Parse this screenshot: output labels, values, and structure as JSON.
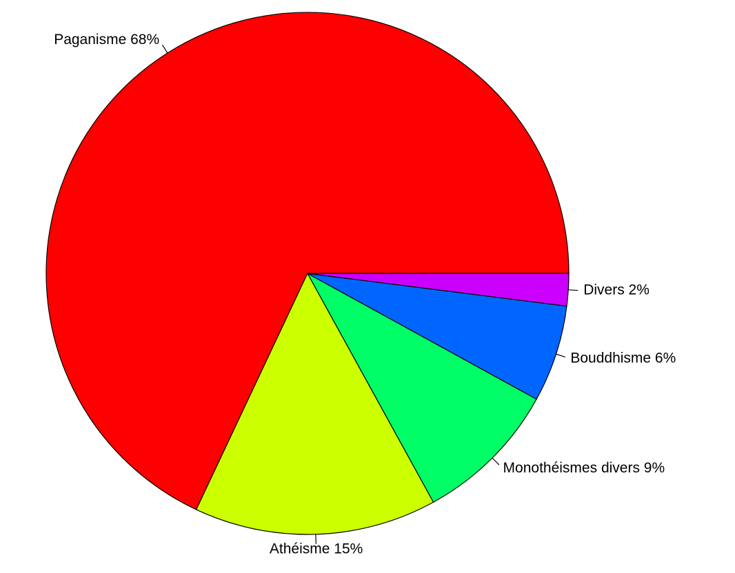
{
  "chart_data": {
    "type": "pie",
    "title": "",
    "start_angle_deg": 0,
    "direction": "counterclockwise",
    "slices": [
      {
        "label": "Paganisme 68%",
        "value": 68,
        "color": "#FF0000"
      },
      {
        "label": "Athéisme 15%",
        "value": 15,
        "color": "#CCFF00"
      },
      {
        "label": "Monothéismes divers 9%",
        "value": 9,
        "color": "#00FF66"
      },
      {
        "label": "Bouddhisme 6%",
        "value": 6,
        "color": "#0066FF"
      },
      {
        "label": "Divers 2%",
        "value": 2,
        "color": "#CC00FF"
      }
    ]
  }
}
